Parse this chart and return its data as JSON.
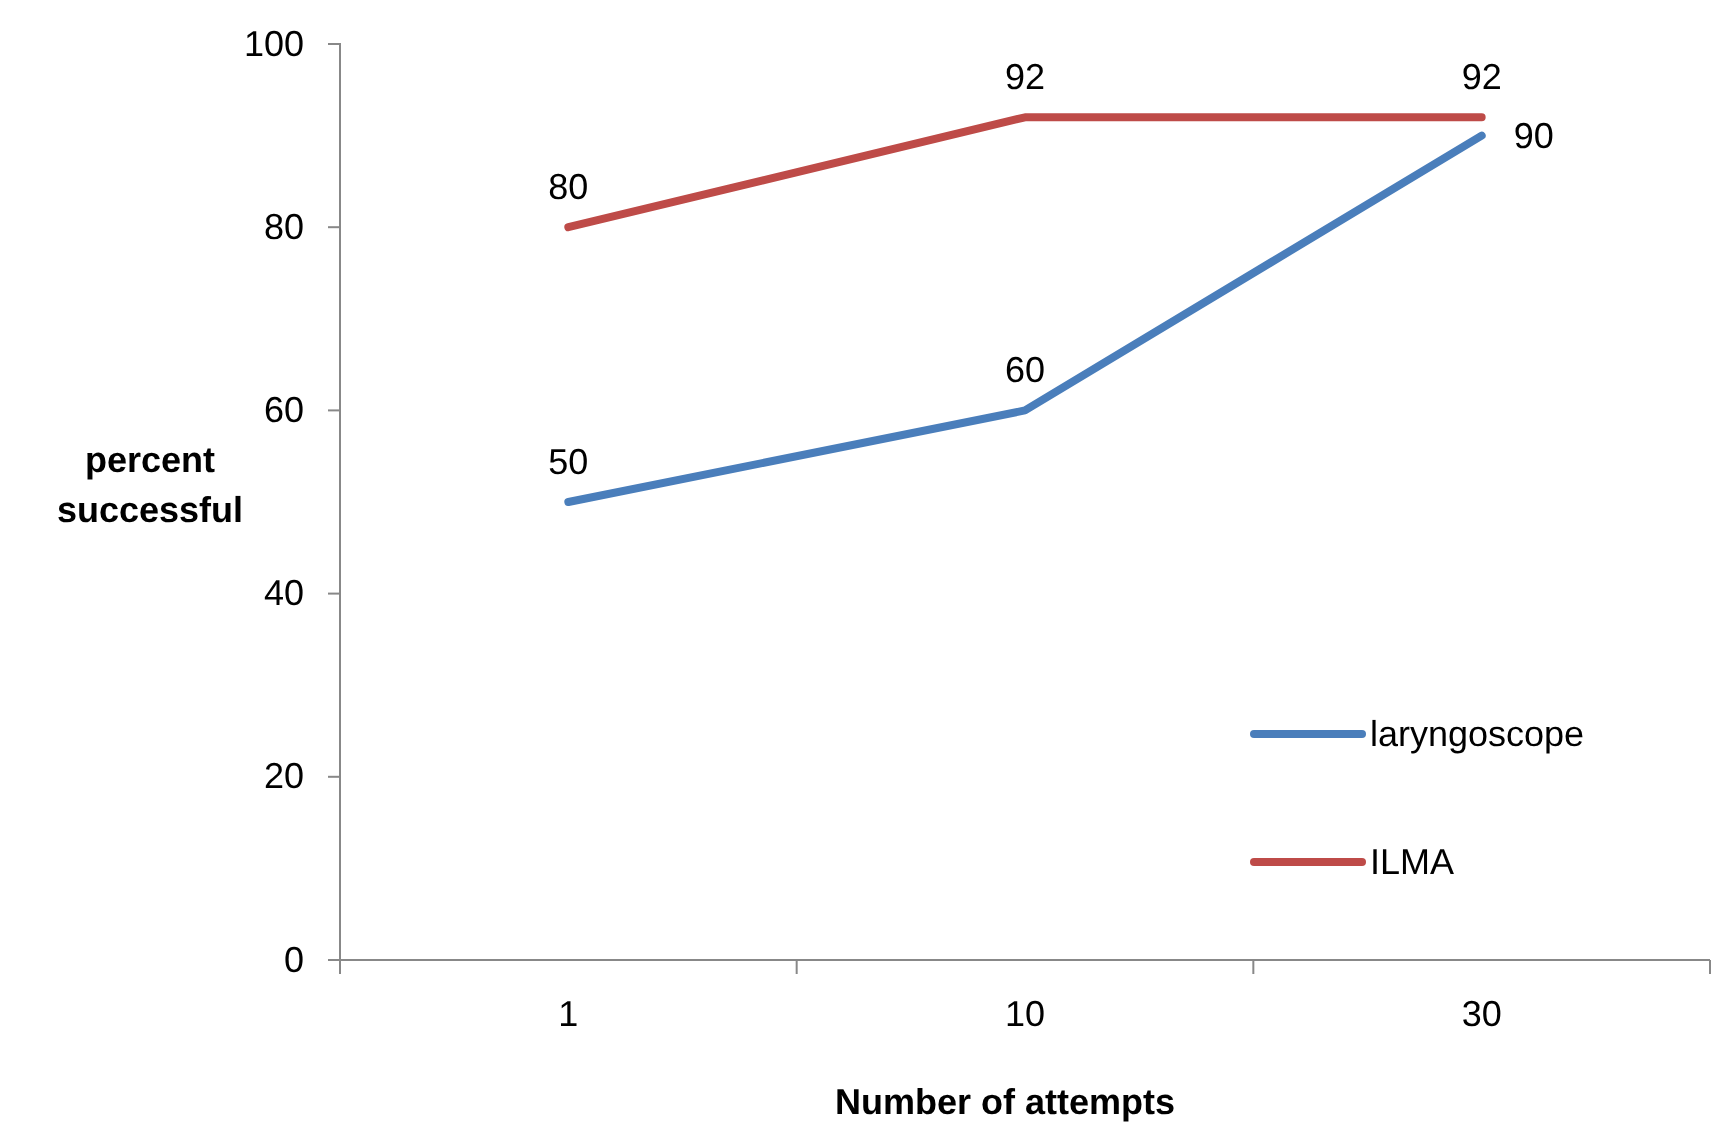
{
  "chart_data": {
    "type": "line",
    "xlabel": "Number of attempts",
    "ylabel": "percent successful",
    "categories": [
      "1",
      "10",
      "30"
    ],
    "series": [
      {
        "name": "laryngoscope",
        "color": "#4a7ebb",
        "values": [
          50,
          60,
          90
        ]
      },
      {
        "name": "ILMA",
        "color": "#be4b48",
        "values": [
          80,
          92,
          92
        ]
      }
    ],
    "ylim": [
      0,
      100
    ],
    "yticks": [
      0,
      20,
      40,
      60,
      80,
      100
    ],
    "data_labels": true,
    "legend": "right",
    "marker": "none",
    "line_style": "solid",
    "grid": false
  }
}
